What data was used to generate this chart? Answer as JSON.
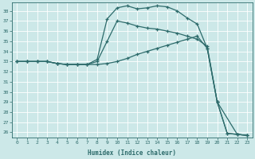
{
  "xlabel": "Humidex (Indice chaleur)",
  "bg_color": "#cce8e8",
  "line_color": "#2d6b6b",
  "grid_color": "#ffffff",
  "xlim": [
    -0.5,
    23.5
  ],
  "ylim": [
    25.5,
    38.8
  ],
  "xticks": [
    0,
    1,
    2,
    3,
    4,
    5,
    6,
    7,
    8,
    9,
    10,
    11,
    12,
    13,
    14,
    15,
    16,
    17,
    18,
    19,
    20,
    21,
    22,
    23
  ],
  "yticks": [
    26,
    27,
    28,
    29,
    30,
    31,
    32,
    33,
    34,
    35,
    36,
    37,
    38
  ],
  "line1_x": [
    0,
    1,
    2,
    3,
    4,
    5,
    6,
    7,
    8,
    9,
    10,
    11,
    12,
    13,
    14,
    15,
    16,
    17,
    18,
    19,
    20,
    21,
    22,
    23
  ],
  "line1_y": [
    33.0,
    33.0,
    33.0,
    33.0,
    32.8,
    32.7,
    32.7,
    32.7,
    33.2,
    37.2,
    38.3,
    38.5,
    38.2,
    38.3,
    38.5,
    38.4,
    38.0,
    37.3,
    36.7,
    34.3,
    29.0,
    25.9,
    25.8,
    25.7
  ],
  "line2_x": [
    0,
    1,
    2,
    3,
    4,
    5,
    6,
    7,
    8,
    9,
    10,
    11,
    12,
    13,
    14,
    15,
    16,
    17,
    18,
    19,
    20,
    22,
    23
  ],
  "line2_y": [
    33.0,
    33.0,
    33.0,
    33.0,
    32.8,
    32.7,
    32.7,
    32.7,
    33.0,
    35.0,
    37.0,
    36.8,
    36.5,
    36.3,
    36.2,
    36.0,
    35.8,
    35.5,
    35.2,
    34.5,
    29.0,
    25.8,
    25.7
  ],
  "line3_x": [
    0,
    1,
    2,
    3,
    4,
    5,
    6,
    7,
    8,
    9,
    10,
    11,
    12,
    13,
    14,
    15,
    16,
    17,
    18,
    19,
    20,
    21,
    22,
    23
  ],
  "line3_y": [
    33.0,
    33.0,
    33.0,
    33.0,
    32.8,
    32.7,
    32.7,
    32.7,
    32.7,
    32.8,
    33.0,
    33.3,
    33.7,
    34.0,
    34.3,
    34.6,
    34.9,
    35.2,
    35.5,
    34.3,
    29.0,
    25.9,
    25.8,
    25.7
  ]
}
